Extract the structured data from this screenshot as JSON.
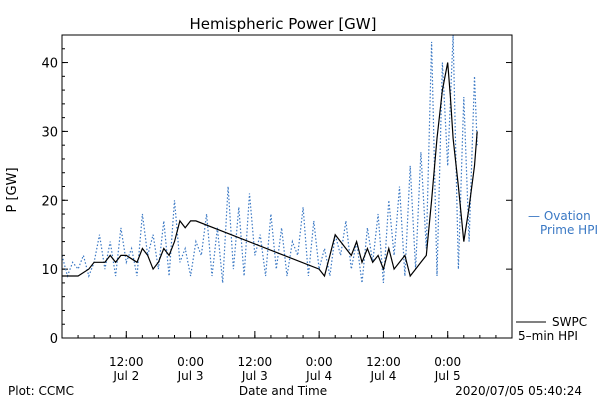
{
  "chart_data": {
    "type": "line",
    "title": "Hemispheric Power [GW]",
    "ylabel": "P [GW]",
    "xlabel": "Date and Time",
    "ylim": [
      0,
      44
    ],
    "yticks": [
      0,
      10,
      20,
      30,
      40
    ],
    "x_range_hours": [
      -72,
      12
    ],
    "xticks": [
      {
        "hour": -60,
        "time": "12:00",
        "date": "Jul 2"
      },
      {
        "hour": -48,
        "time": "0:00",
        "date": "Jul 3"
      },
      {
        "hour": -36,
        "time": "12:00",
        "date": "Jul 3"
      },
      {
        "hour": -24,
        "time": "0:00",
        "date": "Jul 4"
      },
      {
        "hour": -12,
        "time": "12:00",
        "date": "Jul 4"
      },
      {
        "hour": 0,
        "time": "0:00",
        "date": "Jul 5"
      }
    ],
    "grid": false,
    "series": [
      {
        "name": "Ovation Prime HPI",
        "color": "#3a78c4",
        "style": "dotted",
        "x": [
          -72,
          -71,
          -70,
          -69,
          -68,
          -67,
          -66,
          -65,
          -64,
          -63,
          -62,
          -61,
          -60,
          -59,
          -58,
          -57,
          -56,
          -55,
          -54,
          -53,
          -52,
          -51,
          -50,
          -49,
          -48,
          -47,
          -46,
          -45,
          -44,
          -43,
          -42,
          -41,
          -40,
          -39,
          -38,
          -37,
          -36,
          -35,
          -34,
          -33,
          -32,
          -31,
          -30,
          -29,
          -28,
          -27,
          -26,
          -25,
          -24,
          -23,
          -22,
          -21,
          -20,
          -19,
          -18,
          -17,
          -16,
          -15,
          -14,
          -13,
          -12,
          -11,
          -10,
          -9,
          -8,
          -7,
          -6,
          -5,
          -4,
          -3,
          -2,
          -1,
          0,
          1,
          2,
          3,
          4,
          5,
          5.5
        ],
        "values": [
          12,
          9,
          11,
          10,
          12,
          9,
          11,
          15,
          10,
          14,
          9,
          16,
          11,
          13,
          9,
          18,
          12,
          15,
          10,
          17,
          9,
          20,
          11,
          13,
          9,
          14,
          12,
          18,
          9,
          16,
          8,
          22,
          10,
          19,
          9,
          21,
          12,
          15,
          9,
          18,
          10,
          16,
          9,
          14,
          12,
          19,
          9,
          17,
          10,
          13,
          9,
          15,
          12,
          17,
          10,
          14,
          8,
          16,
          11,
          18,
          8,
          20,
          12,
          22,
          9,
          25,
          10,
          27,
          13,
          43,
          9,
          40,
          25,
          44,
          10,
          35,
          14,
          38,
          28
        ]
      },
      {
        "name": "SWPC 5-min HPI",
        "color": "#000000",
        "style": "solid",
        "x": [
          -72,
          -69,
          -67,
          -66,
          -64,
          -63,
          -62,
          -61,
          -60,
          -58,
          -57,
          -56,
          -55,
          -54,
          -53,
          -52,
          -51,
          -50,
          -49,
          -48,
          -47,
          -24,
          -23,
          -22,
          -21,
          -20,
          -19,
          -18,
          -17,
          -16,
          -15,
          -14,
          -13,
          -12,
          -11,
          -10,
          -9,
          -8,
          -7,
          -6,
          -5,
          -4,
          -3,
          -2,
          -1,
          0,
          0.5,
          1,
          2,
          3,
          4,
          5,
          5.5
        ],
        "values": [
          9,
          9,
          10,
          11,
          11,
          12,
          11,
          12,
          12,
          11,
          13,
          12,
          10,
          11,
          13,
          12,
          14,
          17,
          16,
          17,
          17,
          10,
          9,
          12,
          15,
          14,
          13,
          12,
          14,
          11,
          13,
          11,
          12,
          10,
          13,
          10,
          11,
          12,
          9,
          10,
          11,
          12,
          20,
          29,
          36,
          40,
          35,
          29,
          22,
          14,
          19,
          25,
          30
        ]
      }
    ],
    "legend": [
      {
        "line": "— Ovation",
        "line2": "Prime HPI",
        "color": "#3a78c4"
      },
      {
        "line": "SWPC",
        "line2": "5–min HPI",
        "color": "#000000"
      }
    ]
  },
  "footer": {
    "left": "Plot: CCMC",
    "right": "2020/07/05 05:40:24"
  }
}
